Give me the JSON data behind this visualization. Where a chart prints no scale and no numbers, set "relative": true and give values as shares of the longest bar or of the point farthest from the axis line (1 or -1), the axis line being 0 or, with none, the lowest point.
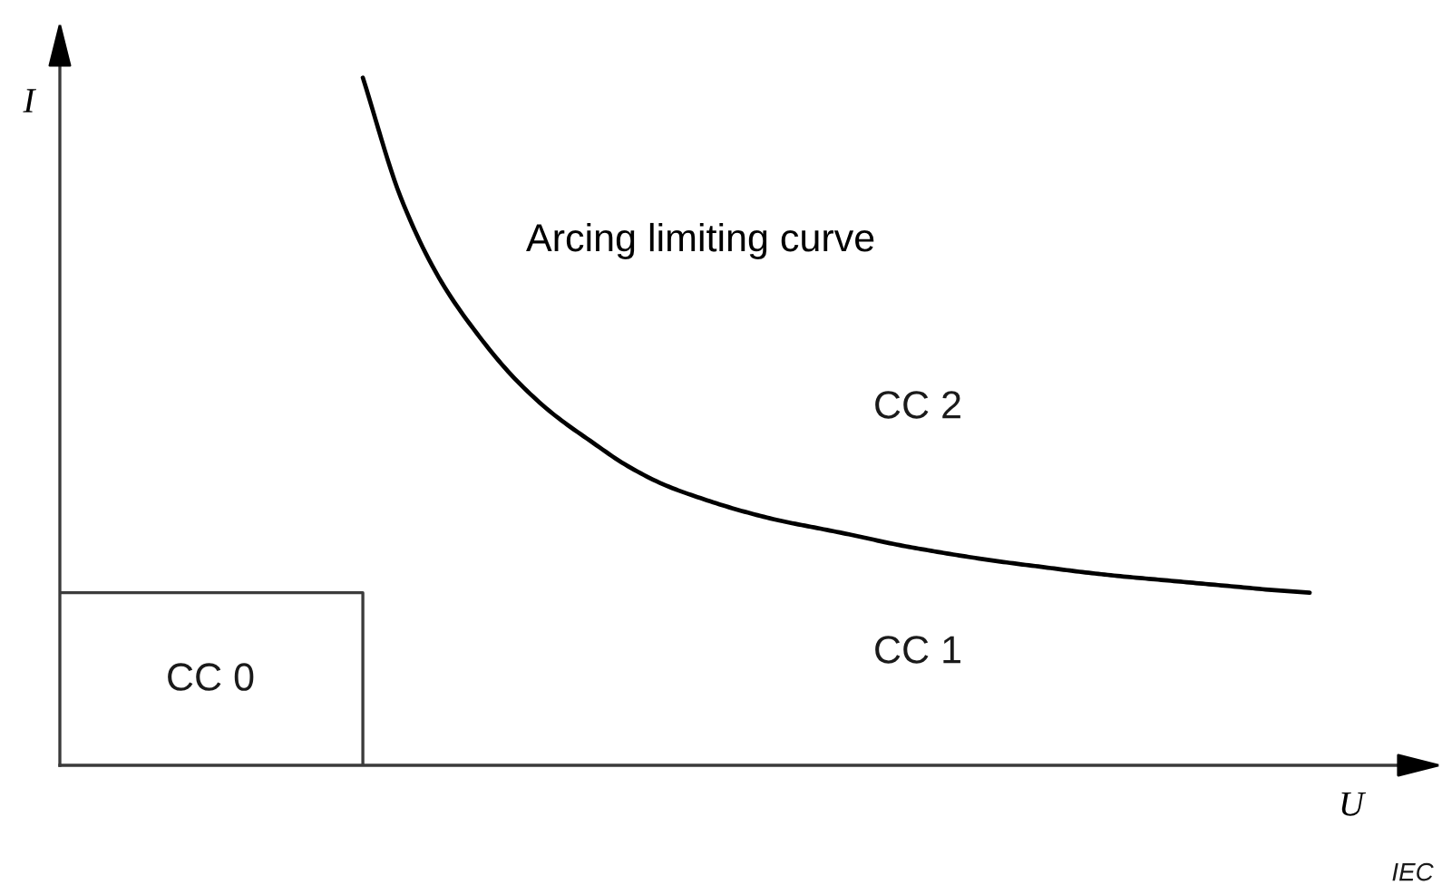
{
  "chart_data": {
    "type": "line",
    "relative": true,
    "xlabel": "U",
    "ylabel": "I",
    "categories": [
      null,
      null,
      null,
      null,
      null,
      null,
      null,
      null,
      null,
      null,
      null,
      null,
      null,
      null,
      null,
      null,
      null,
      null,
      null,
      null,
      null,
      null,
      null,
      null,
      null,
      null,
      null,
      null,
      null,
      null,
      null,
      null,
      null,
      null
    ],
    "series": [
      {
        "name": "Arcing limiting curve",
        "color": "#000000",
        "values": [
          null,
          null,
          null,
          null,
          null,
          null,
          null,
          null,
          1.0,
          0.826,
          0.71,
          0.629,
          0.563,
          0.512,
          0.472,
          0.435,
          0.407,
          0.387,
          0.37,
          0.356,
          0.345,
          0.334,
          0.322,
          0.312,
          0.303,
          0.295,
          0.288,
          0.281,
          0.275,
          0.27,
          0.265,
          0.26,
          0.255,
          0.251
        ]
      },
      {
        "type": "step",
        "color": "#3c3c3c",
        "values": [
          0.251,
          0.251,
          0.251,
          0.251,
          0.251,
          0.251,
          0.251,
          0.251,
          0,
          null,
          null,
          null,
          null,
          null,
          null,
          null,
          null,
          null,
          null,
          null,
          null,
          null,
          null,
          null,
          null,
          null,
          null,
          null,
          null,
          null,
          null,
          null,
          null,
          null
        ]
      }
    ],
    "annotations": [
      "CC 2",
      "CC 1",
      "CC 0",
      "IEC"
    ]
  }
}
